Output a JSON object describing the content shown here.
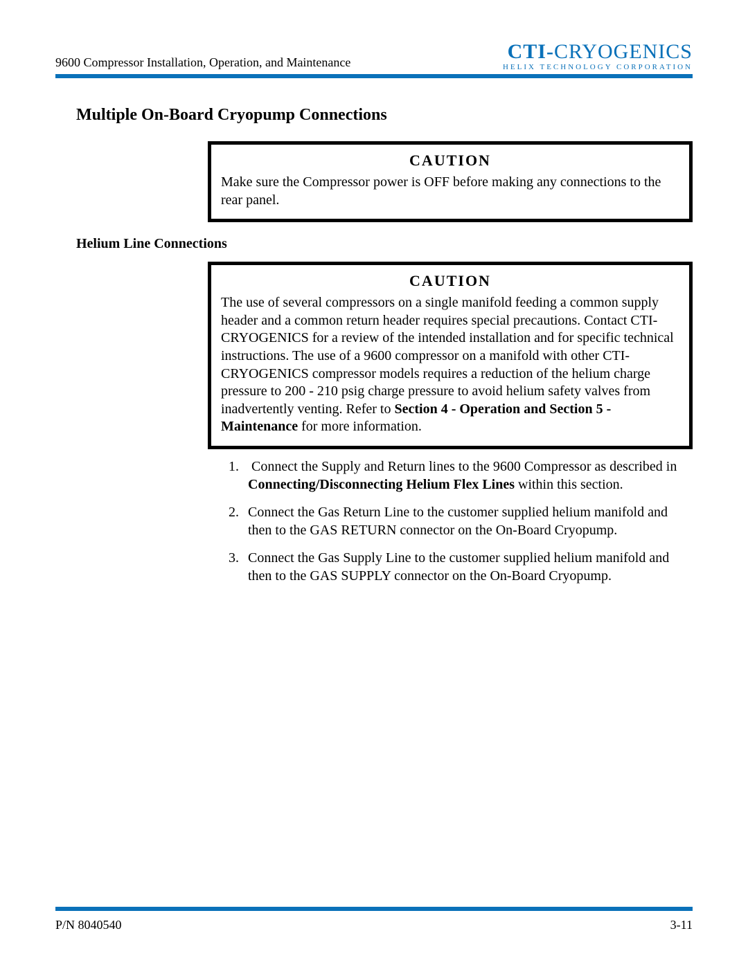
{
  "colors": {
    "accent": "#0a71b9",
    "text": "#000000",
    "background": "#ffffff",
    "caution_border": "#000000"
  },
  "header": {
    "doc_title": "9600 Compressor Installation, Operation, and Maintenance",
    "logo_line1_a": "CTI-",
    "logo_line1_b": "CRYOGENICS",
    "logo_line2": "HELIX TECHNOLOGY CORPORATION"
  },
  "section": {
    "title": "Multiple On-Board Cryopump Connections",
    "caution1": {
      "label": "CAUTION",
      "text": "Make sure the Compressor power is OFF before making any connections to the rear panel."
    },
    "sub_title": "Helium Line Connections",
    "caution2": {
      "label": "CAUTION",
      "text_a": "The use of several compressors on a single manifold feeding a common supply header and a common return header requires special precautions. Contact CTI-CRYOGENICS for a review of the intended installation and for specific technical instructions. The use of a 9600 compressor on a manifold with other CTI-CRYOGENICS compressor models requires a reduction of the helium charge pressure to 200 - 210 psig charge pressure to avoid helium safety valves from inadvertently venting.  Refer to ",
      "text_bold": "Section 4 - Operation and Section 5 - Maintenance",
      "text_b": " for more information."
    },
    "steps": {
      "s1_a": "Connect the Supply and Return lines to the 9600 Compressor as described in ",
      "s1_bold": "Connecting/Disconnecting Helium Flex Lines",
      "s1_b": " within this section.",
      "s2": "Connect the Gas Return Line to the customer supplied helium manifold and then to the GAS RETURN connector on the On-Board Cryopump.",
      "s3": "Connect the Gas Supply Line to the customer supplied helium manifold and then to the GAS SUPPLY connector on the On-Board Cryopump."
    }
  },
  "footer": {
    "left": "P/N 8040540",
    "right": "3-11"
  }
}
